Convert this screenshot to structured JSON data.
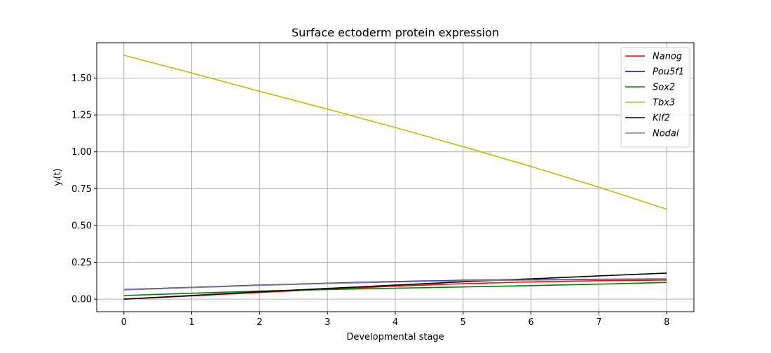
{
  "chart_data": {
    "type": "line",
    "title": "Surface ectoderm protein expression",
    "xlabel": "Developmental stage",
    "ylabel": "yᵢ(t)",
    "xlim": [
      -0.4,
      8.4
    ],
    "ylim": [
      -0.085,
      1.74
    ],
    "x_ticks": [
      0,
      1,
      2,
      3,
      4,
      5,
      6,
      7,
      8
    ],
    "y_ticks": [
      0.0,
      0.25,
      0.5,
      0.75,
      1.0,
      1.25,
      1.5
    ],
    "y_tick_labels": [
      "0.00",
      "0.25",
      "0.50",
      "0.75",
      "1.00",
      "1.25",
      "1.50"
    ],
    "grid": true,
    "legend_position": "top-right",
    "x": [
      0,
      1,
      2,
      3,
      4,
      5,
      6,
      7,
      8
    ],
    "series": [
      {
        "name": "Nanog",
        "color": "#ff0000",
        "values": [
          0.0,
          0.022,
          0.045,
          0.068,
          0.088,
          0.105,
          0.117,
          0.125,
          0.13
        ]
      },
      {
        "name": "Pou5f1",
        "color": "#0000cc",
        "values": [
          0.065,
          0.08,
          0.095,
          0.108,
          0.12,
          0.128,
          0.132,
          0.135,
          0.137
        ]
      },
      {
        "name": "Sox2",
        "color": "#008000",
        "values": [
          0.025,
          0.04,
          0.055,
          0.065,
          0.074,
          0.083,
          0.092,
          0.102,
          0.113
        ]
      },
      {
        "name": "Tbx3",
        "color": "#bfbf00",
        "values": [
          1.655,
          1.535,
          1.41,
          1.29,
          1.165,
          1.035,
          0.9,
          0.76,
          0.61
        ]
      },
      {
        "name": "Klf2",
        "color": "#000000",
        "values": [
          0.0,
          0.025,
          0.05,
          0.073,
          0.095,
          0.118,
          0.138,
          0.158,
          0.177
        ]
      },
      {
        "name": "Nodal",
        "color": "#808080",
        "values": [
          0.063,
          0.078,
          0.093,
          0.106,
          0.117,
          0.125,
          0.13,
          0.133,
          0.135
        ]
      }
    ]
  }
}
